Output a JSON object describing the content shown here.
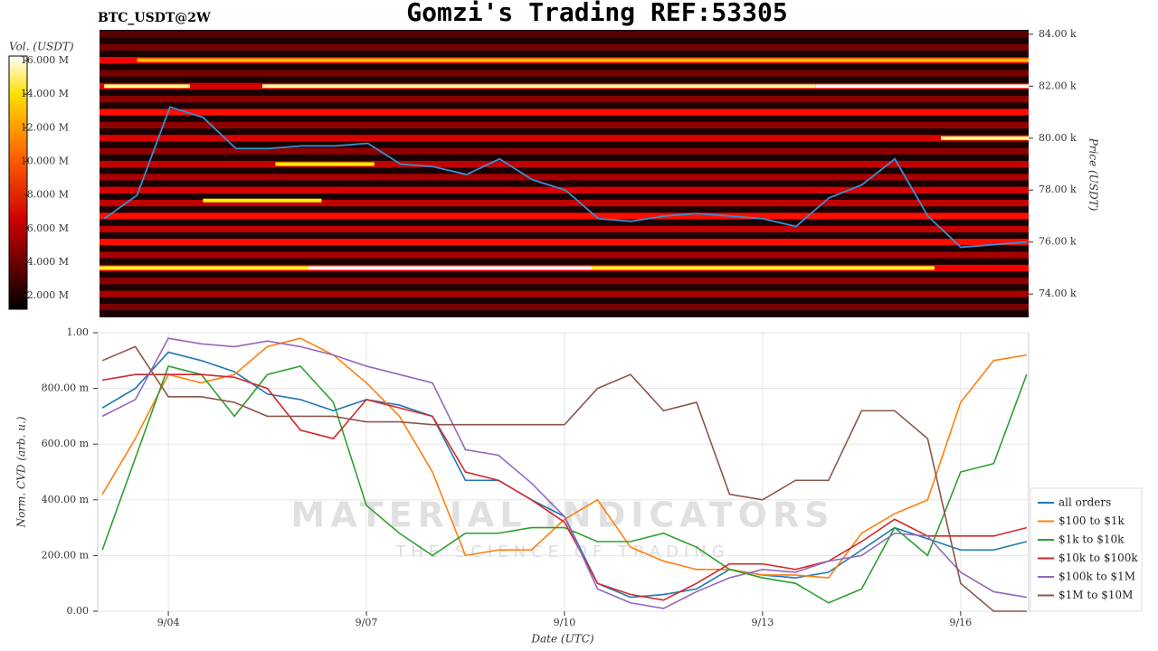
{
  "chart_data": [
    {
      "type": "heatmap",
      "title": "Gomzi's Trading REF:53305",
      "subtitle": "BTC_USDT@2W",
      "ylabel": "Price (USDT)",
      "color": "#3a8fd0",
      "x": [
        3,
        3.5,
        4,
        4.5,
        5,
        5.5,
        6,
        6.5,
        7,
        7.5,
        8,
        8.5,
        9,
        9.5,
        10,
        10.5,
        11,
        11.5,
        12,
        12.5,
        13,
        13.5,
        14,
        14.5,
        15,
        15.5,
        16,
        16.5,
        17
      ],
      "values": [
        76900,
        77800,
        81200,
        80800,
        79600,
        79600,
        79700,
        79700,
        79800,
        79000,
        78900,
        78600,
        79200,
        78400,
        78000,
        76900,
        76800,
        77000,
        77100,
        77000,
        76900,
        76600,
        77700,
        78200,
        79200,
        77000,
        75800,
        75900,
        76000
      ],
      "xlim": [
        2.93,
        17.03
      ],
      "ylim": [
        73100,
        84170
      ],
      "yticks": [
        {
          "value": 74000,
          "label": "74.00 k"
        },
        {
          "value": 76000,
          "label": "76.00 k"
        },
        {
          "value": 78000,
          "label": "78.00 k"
        },
        {
          "value": 80000,
          "label": "80.00 k"
        },
        {
          "value": 82000,
          "label": "82.00 k"
        },
        {
          "value": 84000,
          "label": "84.00 k"
        }
      ],
      "colorbar": {
        "label": "Vol. (USDT)",
        "lim": [
          1200000,
          16270000
        ],
        "ticks": [
          {
            "value": 2000000,
            "label": "2.000 M"
          },
          {
            "value": 4000000,
            "label": "4.000 M"
          },
          {
            "value": 6000000,
            "label": "6.000 M"
          },
          {
            "value": 8000000,
            "label": "8.000 M"
          },
          {
            "value": 10000000,
            "label": "10.000 M"
          },
          {
            "value": 12000000,
            "label": "12.000 M"
          },
          {
            "value": 14000000,
            "label": "14.000 M"
          },
          {
            "value": 16000000,
            "label": "16.000 M"
          }
        ]
      },
      "levels": {
        "prices": [
          73500,
          74000,
          74500,
          75000,
          75500,
          76000,
          76500,
          77000,
          77500,
          78000,
          78500,
          79000,
          79500,
          80000,
          80500,
          81000,
          81500,
          82000,
          82500,
          83000,
          83500,
          84000
        ],
        "volumes": [
          3500000,
          4500000,
          4000000,
          6000000,
          4500000,
          6500000,
          5000000,
          6500000,
          5000000,
          5500000,
          4500000,
          5000000,
          4000000,
          5500000,
          4000000,
          6500000,
          4000000,
          5500000,
          3500000,
          6000000,
          3500000,
          3000000
        ]
      },
      "walls": [
        {
          "price": 82000,
          "start": 3.0,
          "end": 4.3,
          "volume": 14000000
        },
        {
          "price": 82000,
          "start": 5.4,
          "end": 13.8,
          "volume": 14500000
        },
        {
          "price": 82000,
          "start": 13.8,
          "end": 17.03,
          "volume": 16000000
        },
        {
          "price": 75000,
          "start": 2.93,
          "end": 6.1,
          "volume": 12000000
        },
        {
          "price": 75000,
          "start": 6.1,
          "end": 10.4,
          "volume": 16000000
        },
        {
          "price": 75000,
          "start": 10.4,
          "end": 15.6,
          "volume": 12000000
        },
        {
          "price": 80000,
          "start": 15.7,
          "end": 17.03,
          "volume": 14000000
        },
        {
          "price": 83000,
          "start": 3.5,
          "end": 17.03,
          "volume": 10000000
        },
        {
          "price": 77600,
          "start": 4.5,
          "end": 6.3,
          "volume": 11000000
        },
        {
          "price": 79000,
          "start": 5.6,
          "end": 7.1,
          "volume": 11000000
        }
      ]
    },
    {
      "type": "line",
      "xlabel": "Date (UTC)",
      "ylabel": "Norm. CVD (arb. u.)",
      "x": [
        3,
        3.5,
        4,
        4.5,
        5,
        5.5,
        6,
        6.5,
        7,
        7.5,
        8,
        8.5,
        9,
        9.5,
        10,
        10.5,
        11,
        11.5,
        12,
        12.5,
        13,
        13.5,
        14,
        14.5,
        15,
        15.5,
        16,
        16.5,
        17
      ],
      "xlim": [
        2.93,
        17.03
      ],
      "ylim": [
        0,
        1
      ],
      "xticks": [
        {
          "value": 4,
          "label": "9/04"
        },
        {
          "value": 7,
          "label": "9/07"
        },
        {
          "value": 10,
          "label": "9/10"
        },
        {
          "value": 13,
          "label": "9/13"
        },
        {
          "value": 16,
          "label": "9/16"
        }
      ],
      "yticks": [
        {
          "value": 0,
          "label": "0.00"
        },
        {
          "value": 0.2,
          "label": "200.00 m"
        },
        {
          "value": 0.4,
          "label": "400.00 m"
        },
        {
          "value": 0.6,
          "label": "600.00 m"
        },
        {
          "value": 0.8,
          "label": "800.00 m"
        },
        {
          "value": 1,
          "label": "1.00"
        }
      ],
      "grid": true,
      "legend": "lower right",
      "series": [
        {
          "name": "all orders",
          "color": "#1f77b4",
          "values": [
            0.73,
            0.8,
            0.93,
            0.9,
            0.86,
            0.78,
            0.76,
            0.72,
            0.76,
            0.74,
            0.7,
            0.47,
            0.47,
            0.4,
            0.34,
            0.1,
            0.05,
            0.06,
            0.08,
            0.15,
            0.13,
            0.12,
            0.14,
            0.22,
            0.3,
            0.26,
            0.22,
            0.22,
            0.25
          ]
        },
        {
          "name": "$100 to $1k",
          "color": "#ff7f0e",
          "values": [
            0.42,
            0.62,
            0.85,
            0.82,
            0.85,
            0.95,
            0.98,
            0.92,
            0.82,
            0.7,
            0.5,
            0.2,
            0.22,
            0.22,
            0.33,
            0.4,
            0.23,
            0.18,
            0.15,
            0.15,
            0.13,
            0.13,
            0.12,
            0.28,
            0.35,
            0.4,
            0.75,
            0.9,
            0.92
          ]
        },
        {
          "name": "$1k to $10k",
          "color": "#2ca02c",
          "values": [
            0.22,
            0.55,
            0.88,
            0.85,
            0.7,
            0.85,
            0.88,
            0.75,
            0.38,
            0.28,
            0.2,
            0.28,
            0.28,
            0.3,
            0.3,
            0.25,
            0.25,
            0.28,
            0.23,
            0.15,
            0.12,
            0.1,
            0.03,
            0.08,
            0.3,
            0.2,
            0.5,
            0.53,
            0.85
          ]
        },
        {
          "name": "$10k to $100k",
          "color": "#d62728",
          "values": [
            0.83,
            0.85,
            0.85,
            0.85,
            0.84,
            0.8,
            0.65,
            0.62,
            0.76,
            0.73,
            0.7,
            0.5,
            0.47,
            0.4,
            0.32,
            0.1,
            0.06,
            0.04,
            0.1,
            0.17,
            0.17,
            0.15,
            0.18,
            0.25,
            0.33,
            0.27,
            0.27,
            0.27,
            0.3
          ]
        },
        {
          "name": "$100k to $1M",
          "color": "#9467bd",
          "values": [
            0.7,
            0.76,
            0.98,
            0.96,
            0.95,
            0.97,
            0.95,
            0.92,
            0.88,
            0.85,
            0.82,
            0.58,
            0.56,
            0.46,
            0.34,
            0.08,
            0.03,
            0.01,
            0.07,
            0.12,
            0.15,
            0.14,
            0.18,
            0.2,
            0.28,
            0.27,
            0.14,
            0.07,
            0.05
          ]
        },
        {
          "name": "$1M to $10M",
          "color": "#8c564b",
          "values": [
            0.9,
            0.95,
            0.77,
            0.77,
            0.75,
            0.7,
            0.7,
            0.7,
            0.68,
            0.68,
            0.67,
            0.67,
            0.67,
            0.67,
            0.67,
            0.8,
            0.85,
            0.72,
            0.75,
            0.42,
            0.4,
            0.47,
            0.47,
            0.72,
            0.72,
            0.62,
            0.1,
            0.0,
            0.0
          ]
        }
      ]
    }
  ],
  "watermark": {
    "brand": "MATERIAL INDICATORS",
    "tagline": "THE SCIENCE OF TRADING"
  }
}
